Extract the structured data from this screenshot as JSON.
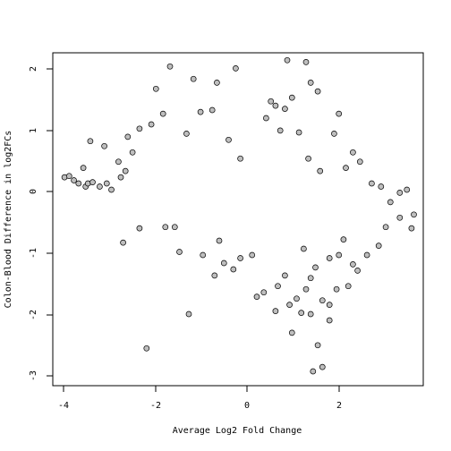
{
  "chart_data": {
    "type": "scatter",
    "title": "",
    "xlabel": "Average Log2 Fold Change",
    "ylabel": "Colon-Blood Difference in log2FCs",
    "xlim": [
      -4.2,
      3.7
    ],
    "ylim": [
      -3.15,
      2.2
    ],
    "x_ticks": [
      -4,
      -2,
      0,
      2
    ],
    "y_ticks": [
      -3,
      -2,
      -1,
      0,
      1,
      2
    ],
    "x_tick_labels": [
      "-4",
      "-2",
      "0",
      "2"
    ],
    "y_tick_labels": [
      "-3",
      "-2",
      "-1",
      "0",
      "1",
      "2"
    ],
    "grid": false,
    "legend": "none",
    "point_fill": "#bebebe",
    "point_stroke": "#000000",
    "series": [
      {
        "points": [
          [
            -3.95,
            0.2
          ],
          [
            -3.85,
            0.22
          ],
          [
            -3.75,
            0.15
          ],
          [
            -3.65,
            0.1
          ],
          [
            -3.5,
            0.05
          ],
          [
            -3.45,
            0.1
          ],
          [
            -3.35,
            0.12
          ],
          [
            -3.4,
            0.78
          ],
          [
            -3.1,
            0.7
          ],
          [
            -3.55,
            0.35
          ],
          [
            -3.2,
            0.05
          ],
          [
            -3.05,
            0.1
          ],
          [
            -2.95,
            0.0
          ],
          [
            -2.75,
            0.2
          ],
          [
            -2.8,
            0.45
          ],
          [
            -2.65,
            0.3
          ],
          [
            -2.6,
            0.85
          ],
          [
            -2.5,
            0.6
          ],
          [
            -2.35,
            0.98
          ],
          [
            -2.1,
            1.05
          ],
          [
            -2.0,
            1.62
          ],
          [
            -1.85,
            1.22
          ],
          [
            -1.7,
            1.98
          ],
          [
            -1.2,
            1.78
          ],
          [
            -0.7,
            1.72
          ],
          [
            -0.3,
            1.95
          ],
          [
            -1.35,
            0.9
          ],
          [
            -1.05,
            1.25
          ],
          [
            -0.8,
            1.28
          ],
          [
            -0.45,
            0.8
          ],
          [
            -0.2,
            0.5
          ],
          [
            -2.7,
            -0.85
          ],
          [
            -2.35,
            -0.62
          ],
          [
            -1.8,
            -0.6
          ],
          [
            -1.6,
            -0.6
          ],
          [
            -1.5,
            -1.0
          ],
          [
            -2.2,
            -2.55
          ],
          [
            -1.3,
            -2.0
          ],
          [
            -1.0,
            -1.05
          ],
          [
            -0.75,
            -1.38
          ],
          [
            -0.55,
            -1.18
          ],
          [
            -0.65,
            -0.82
          ],
          [
            -0.35,
            -1.28
          ],
          [
            -0.2,
            -1.1
          ],
          [
            0.05,
            -1.05
          ],
          [
            0.15,
            -1.72
          ],
          [
            0.3,
            -1.65
          ],
          [
            0.55,
            -1.95
          ],
          [
            0.6,
            -1.55
          ],
          [
            0.75,
            -1.38
          ],
          [
            0.85,
            -1.85
          ],
          [
            0.9,
            -2.3
          ],
          [
            1.0,
            -1.75
          ],
          [
            1.1,
            -1.98
          ],
          [
            1.2,
            -1.6
          ],
          [
            1.3,
            -2.0
          ],
          [
            1.3,
            -1.42
          ],
          [
            1.45,
            -2.5
          ],
          [
            1.55,
            -1.78
          ],
          [
            1.7,
            -1.85
          ],
          [
            1.7,
            -2.1
          ],
          [
            1.85,
            -1.6
          ],
          [
            1.9,
            -1.05
          ],
          [
            2.1,
            -1.55
          ],
          [
            2.3,
            -1.3
          ],
          [
            1.55,
            -2.85
          ],
          [
            1.35,
            -2.92
          ],
          [
            0.8,
            2.08
          ],
          [
            1.2,
            2.05
          ],
          [
            1.3,
            1.72
          ],
          [
            1.45,
            1.58
          ],
          [
            1.9,
            1.22
          ],
          [
            0.35,
            1.15
          ],
          [
            0.45,
            1.42
          ],
          [
            0.55,
            1.35
          ],
          [
            0.75,
            1.3
          ],
          [
            0.9,
            1.48
          ],
          [
            0.65,
            0.95
          ],
          [
            1.05,
            0.92
          ],
          [
            1.25,
            0.5
          ],
          [
            1.5,
            0.3
          ],
          [
            1.8,
            0.9
          ],
          [
            2.05,
            0.35
          ],
          [
            2.2,
            0.6
          ],
          [
            2.35,
            0.45
          ],
          [
            2.6,
            0.1
          ],
          [
            2.8,
            0.05
          ],
          [
            3.0,
            -0.2
          ],
          [
            3.2,
            -0.05
          ],
          [
            3.35,
            0.0
          ],
          [
            3.5,
            -0.4
          ],
          [
            3.45,
            -0.62
          ],
          [
            3.2,
            -0.45
          ],
          [
            2.9,
            -0.6
          ],
          [
            2.75,
            -0.9
          ],
          [
            2.5,
            -1.05
          ],
          [
            2.2,
            -1.2
          ],
          [
            2.0,
            -0.8
          ],
          [
            1.7,
            -1.1
          ],
          [
            1.4,
            -1.25
          ],
          [
            1.15,
            -0.95
          ]
        ]
      }
    ]
  }
}
